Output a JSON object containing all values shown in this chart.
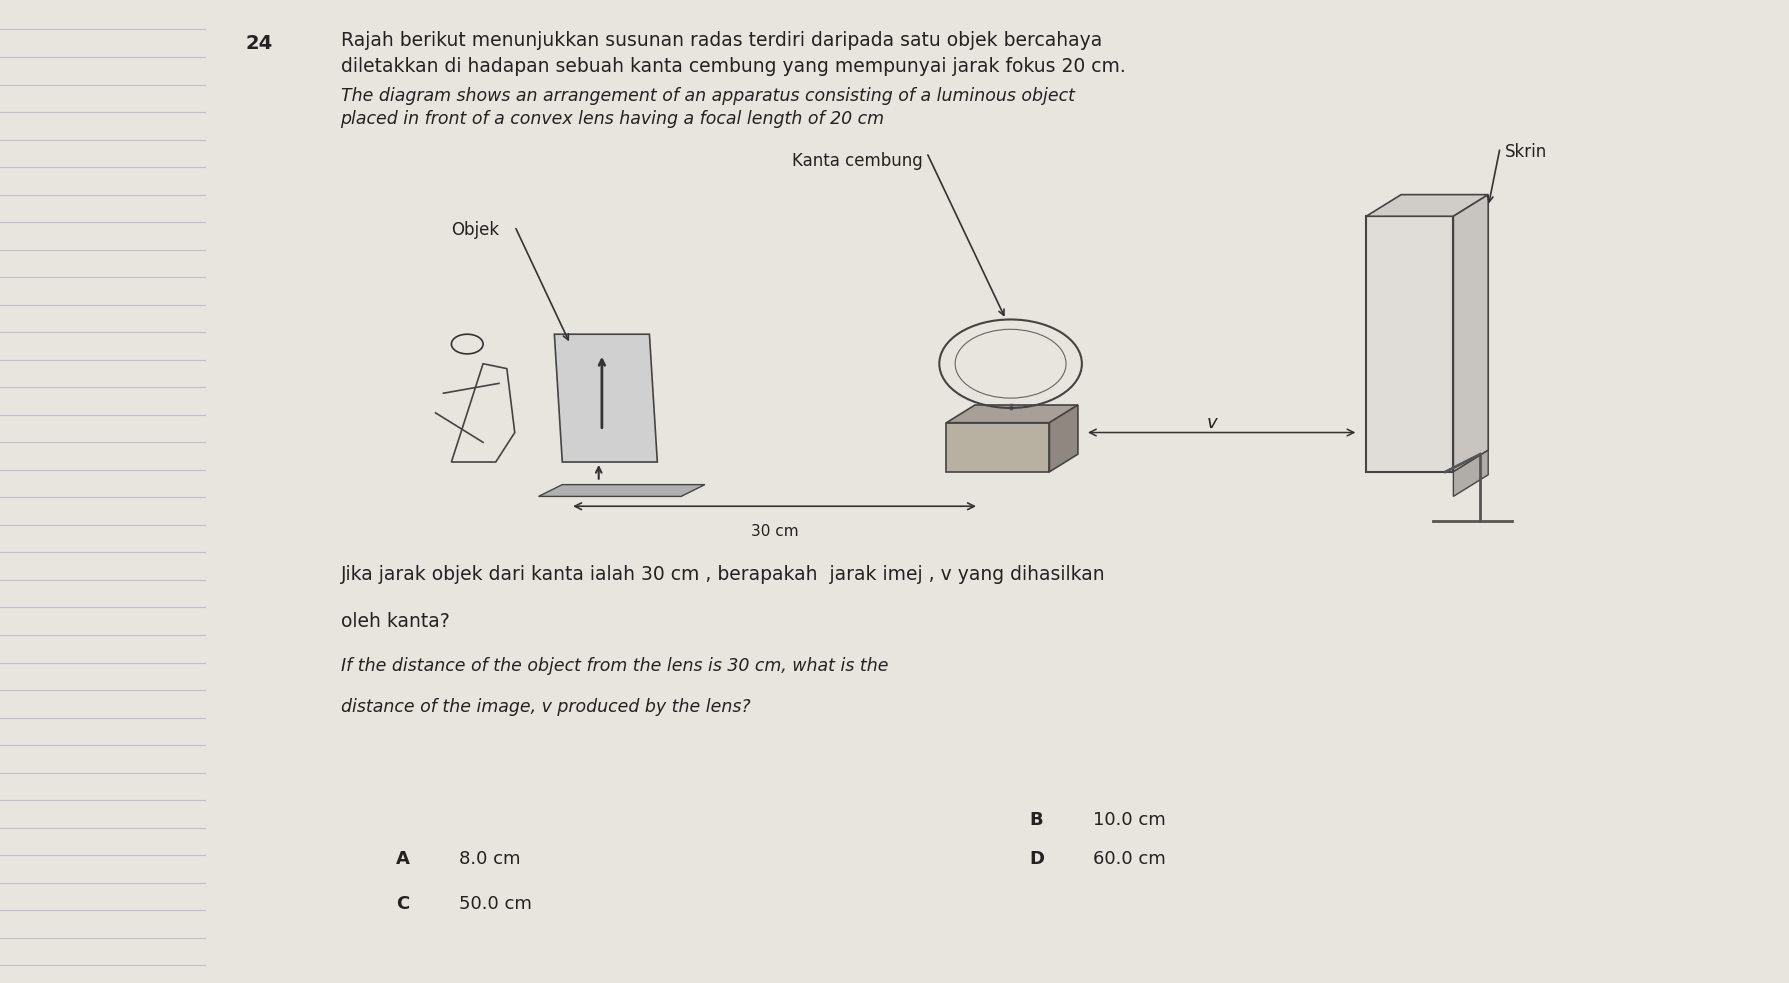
{
  "bg_left_color": "#c8c8c8",
  "bg_right_color": "#e8e4de",
  "paper_color": "#edeae4",
  "question_number": "24",
  "title_malay_1": "Rajah berikut menunjukkan susunan radas terdiri daripada satu objek bercahaya",
  "title_malay_2": "diletakkan di hadapan sebuah kanta cembung yang mempunyai jarak fokus 20 cm.",
  "title_english_1": "The diagram shows an arrangement of an apparatus consisting of a luminous object",
  "title_english_2": "placed in front of a convex lens having a focal length of 20 cm",
  "label_kanta": "Kanta cembung",
  "label_objek": "Objek",
  "label_skrin": "Skrin",
  "label_v": "v",
  "label_30cm": "30 cm",
  "question_malay_1": "Jika jarak objek dari kanta ialah 30 cm , berapakah  jarak imej , v yang dihasilkan",
  "question_malay_2": "oleh kanta?",
  "question_english_1": "If the distance of the object from the lens is 30 cm, what is the",
  "question_english_2": "distance of the image, v produced by the lens?",
  "optA_label": "A",
  "optA_val": "8.0 cm",
  "optB_label": "B",
  "optB_val": "10.0 cm",
  "optC_label": "C",
  "optC_val": "50.0 cm",
  "optD_label": "D",
  "optD_val": "60.0 cm",
  "text_color": "#222222",
  "line_color": "#aaaaaa"
}
